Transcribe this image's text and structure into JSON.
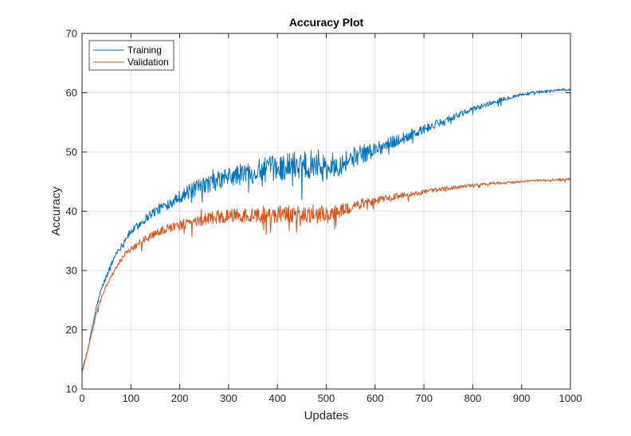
{
  "chart_data": {
    "type": "line",
    "title": "Accuracy Plot",
    "xlabel": "Updates",
    "ylabel": "Accuracy",
    "xlim": [
      0,
      1000
    ],
    "ylim": [
      10,
      70
    ],
    "xticks": [
      0,
      100,
      200,
      300,
      400,
      500,
      600,
      700,
      800,
      900,
      1000
    ],
    "yticks": [
      10,
      20,
      30,
      40,
      50,
      60,
      70
    ],
    "grid": true,
    "legend_position": "top-left",
    "series": [
      {
        "name": "Training",
        "color": "#0072BD",
        "x": [
          0,
          10,
          20,
          30,
          40,
          50,
          60,
          70,
          80,
          90,
          100,
          120,
          140,
          160,
          180,
          200,
          220,
          240,
          260,
          280,
          300,
          320,
          340,
          360,
          380,
          400,
          420,
          440,
          460,
          480,
          500,
          520,
          540,
          560,
          580,
          600,
          620,
          640,
          660,
          680,
          700,
          720,
          740,
          760,
          780,
          800,
          820,
          840,
          860,
          880,
          900,
          920,
          940,
          960,
          980,
          1000
        ],
        "values": [
          13,
          16,
          20,
          24,
          27,
          29,
          31,
          33,
          34,
          35.5,
          36.5,
          38,
          39.5,
          40.5,
          41.5,
          42.5,
          43.3,
          44,
          44.7,
          45.2,
          45.7,
          46.1,
          46.5,
          46.8,
          47.1,
          47.3,
          47.6,
          47.9,
          48.1,
          48.3,
          47.5,
          47.8,
          48.5,
          49.2,
          49.8,
          50.5,
          51.1,
          51.8,
          52.4,
          53.1,
          53.8,
          54.5,
          55.2,
          55.9,
          56.5,
          57.2,
          57.8,
          58.3,
          58.8,
          59.3,
          59.7,
          59.9,
          60.1,
          60.3,
          60.5,
          60.5
        ],
        "noise": [
          0.2,
          0.3,
          0.3,
          0.4,
          0.4,
          0.4,
          0.5,
          0.5,
          0.5,
          0.5,
          0.6,
          0.7,
          0.8,
          0.9,
          1.0,
          1.1,
          1.3,
          1.4,
          1.5,
          1.6,
          1.7,
          1.8,
          1.9,
          2.0,
          2.1,
          2.2,
          2.3,
          2.4,
          2.4,
          2.4,
          2.3,
          2.1,
          1.9,
          1.7,
          1.5,
          1.3,
          1.2,
          1.1,
          1.0,
          0.9,
          0.8,
          0.7,
          0.6,
          0.6,
          0.5,
          0.5,
          0.4,
          0.4,
          0.4,
          0.3,
          0.3,
          0.3,
          0.3,
          0.2,
          0.2,
          0.2
        ]
      },
      {
        "name": "Validation",
        "color": "#D95319",
        "x": [
          0,
          10,
          20,
          30,
          40,
          50,
          60,
          70,
          80,
          90,
          100,
          120,
          140,
          160,
          180,
          200,
          220,
          240,
          260,
          280,
          300,
          320,
          340,
          360,
          380,
          400,
          420,
          440,
          460,
          480,
          500,
          520,
          540,
          560,
          580,
          600,
          620,
          640,
          660,
          680,
          700,
          720,
          740,
          760,
          780,
          800,
          820,
          840,
          860,
          880,
          900,
          920,
          940,
          960,
          980,
          1000
        ],
        "values": [
          13,
          16,
          19.5,
          23,
          25.5,
          27.5,
          29,
          30.5,
          32,
          33,
          33.5,
          34.8,
          35.8,
          36.6,
          37.2,
          37.7,
          38.1,
          38.5,
          38.8,
          39,
          39.2,
          39.3,
          39.4,
          39.5,
          39.5,
          39.5,
          39.6,
          39.6,
          39.6,
          39.6,
          39.3,
          39.8,
          40.5,
          41,
          41.4,
          41.8,
          42.1,
          42.4,
          42.7,
          43,
          43.3,
          43.6,
          43.8,
          44,
          44.2,
          44.4,
          44.6,
          44.7,
          44.8,
          44.9,
          45,
          45.1,
          45.2,
          45.3,
          45.3,
          45.4
        ],
        "noise": [
          0.2,
          0.2,
          0.2,
          0.3,
          0.3,
          0.3,
          0.3,
          0.4,
          0.4,
          0.4,
          0.5,
          0.6,
          0.6,
          0.7,
          0.8,
          0.9,
          1.0,
          1.1,
          1.1,
          1.2,
          1.2,
          1.3,
          1.3,
          1.4,
          1.4,
          1.5,
          1.5,
          1.6,
          1.6,
          1.6,
          1.5,
          1.3,
          1.1,
          0.9,
          0.8,
          0.7,
          0.6,
          0.5,
          0.5,
          0.4,
          0.4,
          0.3,
          0.3,
          0.3,
          0.3,
          0.2,
          0.2,
          0.2,
          0.2,
          0.2,
          0.2,
          0.2,
          0.2,
          0.2,
          0.2,
          0.2
        ]
      }
    ]
  }
}
